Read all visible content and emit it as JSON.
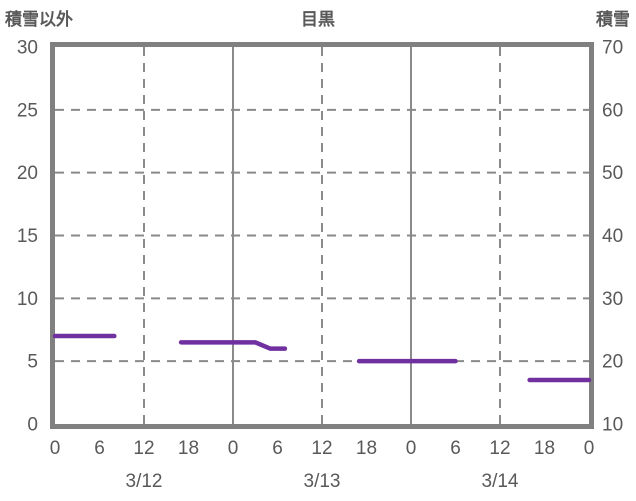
{
  "header": {
    "left_axis_title": "積雪以外",
    "chart_title": "目黒",
    "right_axis_title": "積雪"
  },
  "colors": {
    "line": "#7030A0",
    "frame": "#808080",
    "grid": "#8a8a8a",
    "text": "#595959",
    "background": "#ffffff"
  },
  "chart_data": {
    "type": "line",
    "title": "目黒",
    "left_axis": {
      "label": "積雪以外",
      "range": [
        0,
        30
      ],
      "ticks": [
        "0",
        "5",
        "10",
        "15",
        "20",
        "25",
        "30"
      ],
      "tick_values": [
        0,
        5,
        10,
        15,
        20,
        25,
        30
      ]
    },
    "right_axis": {
      "label": "積雪",
      "range": [
        10,
        70
      ],
      "ticks": [
        "10",
        "20",
        "30",
        "40",
        "50",
        "60",
        "70"
      ],
      "tick_values": [
        10,
        20,
        30,
        40,
        50,
        60,
        70
      ]
    },
    "x_axis": {
      "range_hours": [
        0,
        72
      ],
      "tick_step_hours": 6,
      "tick_labels": [
        "0",
        "6",
        "12",
        "18",
        "0",
        "6",
        "12",
        "18",
        "0",
        "6",
        "12",
        "18",
        "0"
      ],
      "date_labels": [
        {
          "label": "3/12",
          "hour": 12
        },
        {
          "label": "3/13",
          "hour": 36
        },
        {
          "label": "3/14",
          "hour": 60
        }
      ]
    },
    "gridlines": {
      "horizontal_left_values": [
        5,
        10,
        15,
        20,
        25
      ],
      "vertical_dashed_hours": [
        12,
        36,
        60
      ],
      "vertical_solid_hours": [
        24,
        48
      ],
      "grid_on": true
    },
    "series": [
      {
        "color": "#7030A0",
        "segments": [
          {
            "points_hour_leftvalue": [
              [
                0,
                7
              ],
              [
                8,
                7
              ]
            ]
          },
          {
            "points_hour_leftvalue": [
              [
                17,
                6.5
              ],
              [
                27,
                6.5
              ],
              [
                29,
                6
              ],
              [
                31,
                6
              ]
            ]
          },
          {
            "points_hour_leftvalue": [
              [
                41,
                5
              ],
              [
                54,
                5
              ]
            ]
          },
          {
            "points_hour_leftvalue": [
              [
                64,
                3.5
              ],
              [
                72,
                3.5
              ]
            ]
          }
        ]
      }
    ],
    "legend": {
      "visible": false
    }
  }
}
